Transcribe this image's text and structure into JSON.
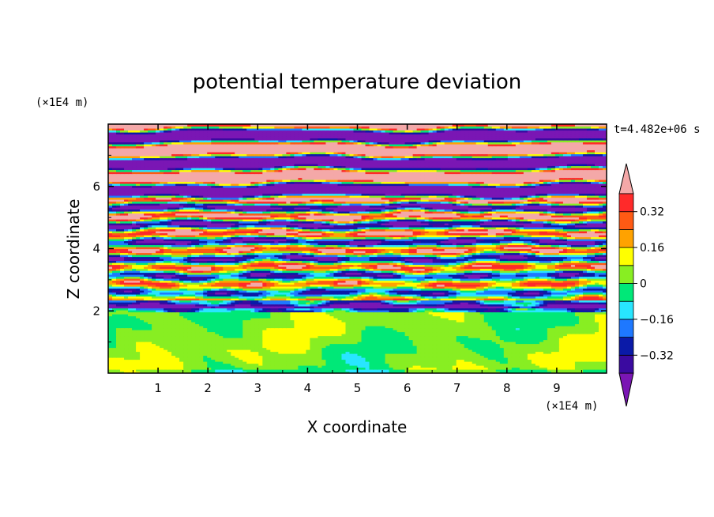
{
  "chart_data": {
    "type": "heatmap",
    "title": "potential temperature deviation",
    "xlabel": "X coordinate",
    "ylabel": "Z coordinate",
    "x_unit": "(×1E4 m)",
    "y_unit": "(×1E4 m)",
    "time_label": "t=4.482e+06 s",
    "xlim": [
      0,
      10
    ],
    "ylim": [
      0,
      8
    ],
    "x_ticks": [
      1,
      2,
      3,
      4,
      5,
      6,
      7,
      8,
      9
    ],
    "y_ticks": [
      2,
      4,
      6
    ],
    "colorbar": {
      "levels": [
        -0.4,
        -0.32,
        -0.24,
        -0.16,
        -0.08,
        0,
        0.08,
        0.16,
        0.24,
        0.32,
        0.4
      ],
      "tick_labels": [
        "0.32",
        "0.16",
        "0",
        "−0.16",
        "−0.32"
      ],
      "tick_values": [
        0.32,
        0.16,
        0,
        -0.16,
        -0.32
      ],
      "colors_low_to_high": [
        "#7a16b4",
        "#3a0aa0",
        "#0a1aa8",
        "#1e78ff",
        "#28e6ff",
        "#00e878",
        "#88ee22",
        "#ffff00",
        "#ffa200",
        "#ff5a14",
        "#ff2a2a",
        "#f4a8a8"
      ],
      "extend": "both"
    },
    "layers": [
      {
        "z_range": [
          0,
          2
        ],
        "pattern": "weak deviations near 0 (green / lime), smooth blobs"
      },
      {
        "z_range": [
          2,
          5.6
        ],
        "pattern": "turbulent layered bands, all colors"
      },
      {
        "z_range": [
          5.6,
          8
        ],
        "pattern": "strong alternating layers, pink (>0.4) and purple (<-0.4)"
      }
    ]
  }
}
